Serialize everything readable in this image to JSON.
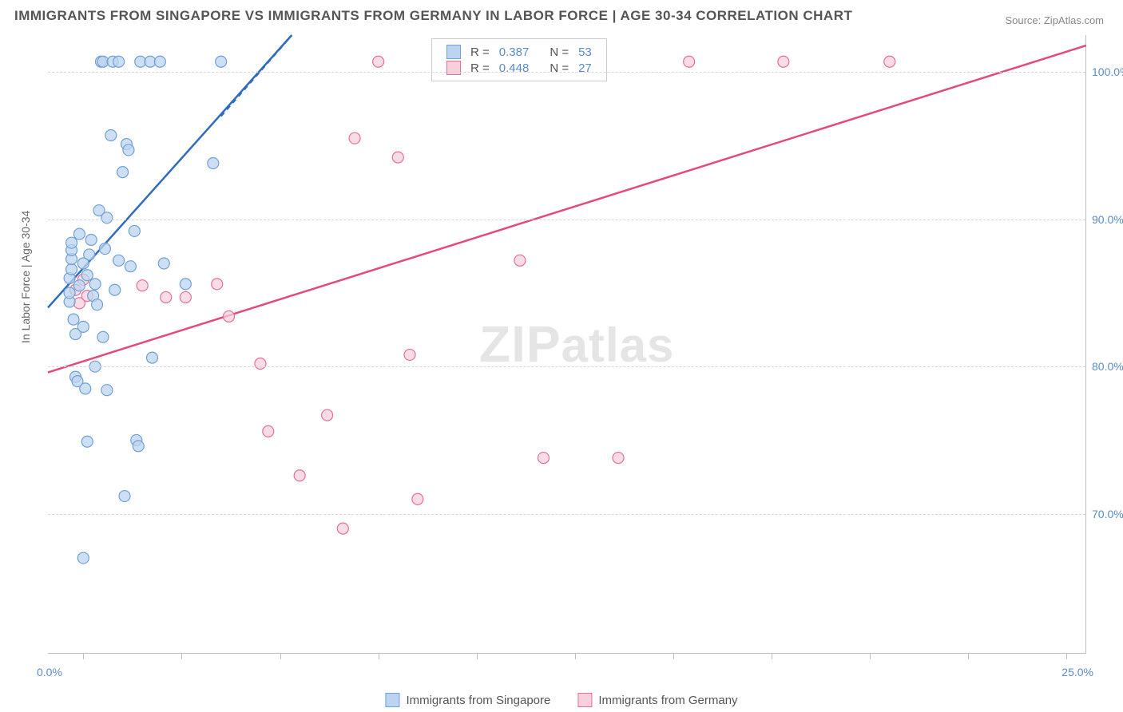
{
  "title": "IMMIGRANTS FROM SINGAPORE VS IMMIGRANTS FROM GERMANY IN LABOR FORCE | AGE 30-34 CORRELATION CHART",
  "source_label": "Source: ZipAtlas.com",
  "y_axis_label": "In Labor Force | Age 30-34",
  "watermark_a": "ZIP",
  "watermark_b": "atlas",
  "chart": {
    "type": "scatter",
    "xlim": [
      -0.9,
      25.5
    ],
    "ylim": [
      60.5,
      102.5
    ],
    "xtick_positions": [
      0,
      2.5,
      5,
      7.5,
      10,
      12.5,
      15,
      17.5,
      20,
      22.5,
      25
    ],
    "xtick_label_left": "0.0%",
    "xtick_label_right": "25.0%",
    "ytick_positions": [
      70,
      80,
      90,
      100
    ],
    "ytick_labels": [
      "70.0%",
      "80.0%",
      "90.0%",
      "100.0%"
    ],
    "background_color": "#ffffff",
    "grid_color": "#d7d7d7",
    "marker_radius": 7,
    "marker_stroke_width": 1.2,
    "line_width": 2.5,
    "series": [
      {
        "name": "Immigrants from Singapore",
        "fill_color": "#bcd4ef",
        "stroke_color": "#6fa0d8",
        "line_color": "#2f6bbf",
        "R": "0.387",
        "N": "53",
        "regression": {
          "x1": -0.9,
          "y1": 84.0,
          "x2": 5.3,
          "y2": 102.5
        },
        "dashed_tail": {
          "x1": 3.5,
          "y1": 97.0,
          "x2": 5.3,
          "y2": 102.5
        },
        "points": [
          [
            -0.35,
            84.4
          ],
          [
            -0.35,
            85.0
          ],
          [
            -0.35,
            86.0
          ],
          [
            -0.3,
            86.6
          ],
          [
            -0.3,
            87.3
          ],
          [
            -0.3,
            87.9
          ],
          [
            -0.3,
            88.4
          ],
          [
            -0.25,
            83.2
          ],
          [
            -0.2,
            82.2
          ],
          [
            -0.2,
            79.3
          ],
          [
            -0.15,
            79.0
          ],
          [
            -0.1,
            89.0
          ],
          [
            0.0,
            82.7
          ],
          [
            0.05,
            78.5
          ],
          [
            0.1,
            74.9
          ],
          [
            0.1,
            86.2
          ],
          [
            0.15,
            87.6
          ],
          [
            0.2,
            88.6
          ],
          [
            0.25,
            84.8
          ],
          [
            0.3,
            85.6
          ],
          [
            0.35,
            84.2
          ],
          [
            0.4,
            90.6
          ],
          [
            0.45,
            100.7
          ],
          [
            0.5,
            100.7
          ],
          [
            0.6,
            90.1
          ],
          [
            0.6,
            78.4
          ],
          [
            0.7,
            95.7
          ],
          [
            0.75,
            100.7
          ],
          [
            0.8,
            85.2
          ],
          [
            0.9,
            100.7
          ],
          [
            1.0,
            93.2
          ],
          [
            1.05,
            71.2
          ],
          [
            1.1,
            95.1
          ],
          [
            1.15,
            94.7
          ],
          [
            1.2,
            86.8
          ],
          [
            1.35,
            75.0
          ],
          [
            1.4,
            74.6
          ],
          [
            1.45,
            100.7
          ],
          [
            1.7,
            100.7
          ],
          [
            1.75,
            80.6
          ],
          [
            1.95,
            100.7
          ],
          [
            2.05,
            87.0
          ],
          [
            2.6,
            85.6
          ],
          [
            3.3,
            93.8
          ],
          [
            3.5,
            100.7
          ],
          [
            0.0,
            67.0
          ],
          [
            0.5,
            82.0
          ],
          [
            0.3,
            80.0
          ],
          [
            0.0,
            87.0
          ],
          [
            -0.1,
            85.5
          ],
          [
            0.55,
            88.0
          ],
          [
            0.9,
            87.2
          ],
          [
            1.3,
            89.2
          ]
        ]
      },
      {
        "name": "Immigrants from Germany",
        "fill_color": "#f7d0dc",
        "stroke_color": "#e66f97",
        "line_color": "#e24b7a",
        "R": "0.448",
        "N": "27",
        "regression": {
          "x1": -0.9,
          "y1": 79.6,
          "x2": 25.5,
          "y2": 101.8
        },
        "points": [
          [
            -0.2,
            85.2
          ],
          [
            -0.1,
            84.3
          ],
          [
            0.0,
            85.9
          ],
          [
            0.1,
            84.8
          ],
          [
            1.5,
            85.5
          ],
          [
            2.1,
            84.7
          ],
          [
            2.6,
            84.7
          ],
          [
            3.4,
            85.6
          ],
          [
            3.7,
            83.4
          ],
          [
            4.5,
            80.2
          ],
          [
            4.7,
            75.6
          ],
          [
            5.5,
            72.6
          ],
          [
            6.2,
            76.7
          ],
          [
            6.6,
            69.0
          ],
          [
            6.9,
            95.5
          ],
          [
            7.5,
            100.7
          ],
          [
            8.0,
            94.2
          ],
          [
            8.3,
            80.8
          ],
          [
            8.5,
            71.0
          ],
          [
            9.0,
            100.7
          ],
          [
            10.6,
            100.7
          ],
          [
            11.1,
            87.2
          ],
          [
            11.7,
            73.8
          ],
          [
            13.6,
            73.8
          ],
          [
            15.4,
            100.7
          ],
          [
            17.8,
            100.7
          ],
          [
            20.5,
            100.7
          ]
        ]
      }
    ]
  },
  "legend_box": {
    "r_label": "R =",
    "n_label": "N ="
  },
  "bottom_legend": {
    "a": "Immigrants from Singapore",
    "b": "Immigrants from Germany"
  }
}
